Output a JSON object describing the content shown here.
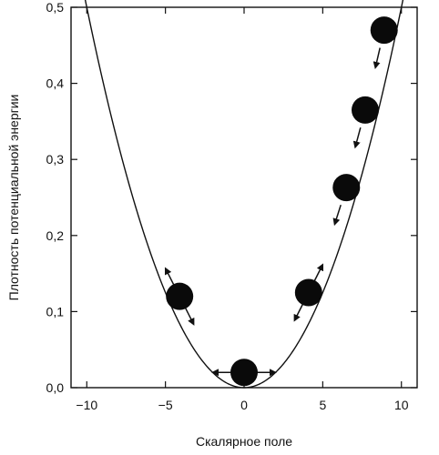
{
  "chart_data": {
    "type": "line",
    "title": "",
    "xlabel": "Скалярное поле",
    "ylabel": "Плотность потенциальной энергии",
    "xlim": [
      -11,
      11
    ],
    "ylim": [
      0,
      0.5
    ],
    "x_ticks": [
      -10,
      -5,
      0,
      5,
      10
    ],
    "x_tick_labels": [
      "−10",
      "−5",
      "0",
      "5",
      "10"
    ],
    "y_ticks": [
      0,
      0.1,
      0.2,
      0.3,
      0.4,
      0.5
    ],
    "y_tick_labels": [
      "0,0",
      "0,1",
      "0,2",
      "0,3",
      "0,4",
      "0,5"
    ],
    "grid": false,
    "legend": "none",
    "curve": {
      "function": "y = 0.005 * x^2",
      "x_range": [
        -11,
        11
      ]
    },
    "balls": [
      {
        "x": -4.1,
        "y": 0.12,
        "arrow": "two-way"
      },
      {
        "x": 0,
        "y": 0.02,
        "arrow": "two-way"
      },
      {
        "x": 4.1,
        "y": 0.125,
        "arrow": "two-way"
      },
      {
        "x": 6.5,
        "y": 0.263,
        "arrow": "down-left"
      },
      {
        "x": 7.7,
        "y": 0.365,
        "arrow": "down-left"
      },
      {
        "x": 8.9,
        "y": 0.47,
        "arrow": "down-left"
      }
    ]
  }
}
